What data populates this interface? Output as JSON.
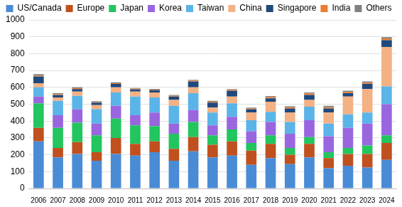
{
  "chart_data": {
    "type": "bar",
    "stacked": true,
    "grid": true,
    "legend": "top",
    "categories": [
      "2006",
      "2007",
      "2008",
      "2009",
      "2010",
      "2011",
      "2012",
      "2013",
      "2014",
      "2015",
      "2016",
      "2017",
      "2018",
      "2019",
      "2020",
      "2021",
      "2022",
      "2023",
      "2024"
    ],
    "ylim": [
      0,
      1000
    ],
    "yticks": [
      0,
      100,
      200,
      300,
      400,
      500,
      600,
      700,
      800,
      900,
      1000
    ],
    "series": [
      {
        "name": "US/Canada",
        "color": "#4a8bd6",
        "values": [
          280,
          185,
          205,
          165,
          205,
          195,
          215,
          165,
          220,
          185,
          195,
          140,
          180,
          145,
          185,
          120,
          135,
          125,
          170
        ]
      },
      {
        "name": "Europe",
        "color": "#c0501e",
        "values": [
          80,
          55,
          70,
          50,
          95,
          70,
          65,
          70,
          85,
          75,
          85,
          85,
          85,
          55,
          80,
          60,
          70,
          80,
          100
        ]
      },
      {
        "name": "Japan",
        "color": "#22c55e",
        "values": [
          145,
          120,
          115,
          100,
          115,
          110,
          90,
          90,
          90,
          55,
          70,
          45,
          50,
          40,
          40,
          35,
          35,
          50,
          45
        ]
      },
      {
        "name": "Korea",
        "color": "#9966e0",
        "values": [
          40,
          75,
          80,
          70,
          75,
          60,
          80,
          60,
          70,
          60,
          75,
          70,
          80,
          85,
          100,
          95,
          120,
          130,
          185
        ]
      },
      {
        "name": "Taiwan",
        "color": "#5ab4e8",
        "values": [
          55,
          85,
          80,
          85,
          80,
          110,
          90,
          105,
          100,
          75,
          80,
          65,
          60,
          70,
          80,
          75,
          80,
          65,
          105
        ]
      },
      {
        "name": "China",
        "color": "#f4b183",
        "values": [
          25,
          20,
          25,
          25,
          30,
          30,
          30,
          35,
          35,
          30,
          40,
          45,
          60,
          55,
          40,
          65,
          105,
          140,
          235
        ]
      },
      {
        "name": "Singapore",
        "color": "#1f497d",
        "values": [
          40,
          15,
          15,
          15,
          20,
          13,
          13,
          20,
          35,
          30,
          35,
          20,
          20,
          25,
          30,
          25,
          20,
          30,
          40
        ]
      },
      {
        "name": "India",
        "color": "#ed7d31",
        "values": [
          5,
          5,
          5,
          3,
          5,
          4,
          4,
          5,
          5,
          5,
          5,
          6,
          7,
          7,
          8,
          7,
          8,
          7,
          10
        ]
      },
      {
        "name": "Others",
        "color": "#808080",
        "values": [
          8,
          5,
          5,
          5,
          5,
          4,
          4,
          5,
          5,
          5,
          5,
          4,
          6,
          6,
          7,
          8,
          7,
          8,
          8
        ]
      }
    ]
  }
}
